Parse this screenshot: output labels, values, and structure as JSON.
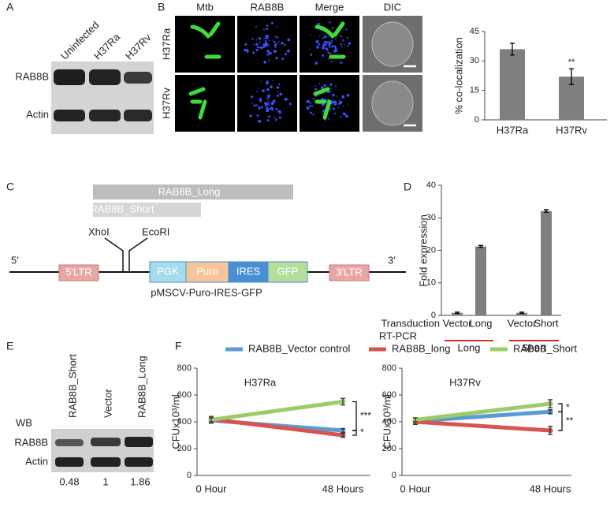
{
  "panel_labels": [
    "A",
    "B",
    "C",
    "D",
    "E",
    "F"
  ],
  "blot_a": {
    "lanes": [
      "Uninfected",
      "H37Ra",
      "H37Rv"
    ],
    "rows": [
      "RAB8B",
      "Actin"
    ]
  },
  "microscopy": {
    "columns": [
      "Mtb",
      "RAB8B",
      "Merge",
      "DIC"
    ],
    "rows": [
      "H37Ra",
      "H37Rv"
    ]
  },
  "construct": {
    "long": "RAB8B_Long",
    "short": "RAB8B_Short",
    "sites": [
      "XhoI",
      "EcoRI"
    ],
    "ends": [
      "5′",
      "3′"
    ],
    "elements": [
      "5'LTR",
      "PGK",
      "Puro",
      "IRES",
      "GFP",
      "3'LTR"
    ],
    "name": "pMSCV-Puro-IRES-GFP"
  },
  "blot_e": {
    "lanes": [
      "RAB8B_Short",
      "Vector",
      "RAB8B_Long"
    ],
    "label": "WB",
    "rows": [
      "RAB8B",
      "Actin"
    ],
    "quantification": [
      0.48,
      1,
      1.86
    ]
  },
  "chart_data": [
    {
      "type": "bar",
      "ylabel": "% co-localization",
      "categories": [
        "H37Ra",
        "H37Rv"
      ],
      "values": [
        36,
        22
      ],
      "errors": [
        3,
        4
      ],
      "annotations": [
        null,
        "**"
      ],
      "color": "#7f7f7f",
      "ylim": [
        0,
        45
      ],
      "yticks": [
        0,
        15,
        30,
        45
      ]
    },
    {
      "type": "bar",
      "ylabel": "Fold expression",
      "categories": [
        "Vector",
        "Long",
        "Vector",
        "Short"
      ],
      "values": [
        0.8,
        21.2,
        0.8,
        32.1
      ],
      "errors": [
        0.2,
        0.3,
        0.2,
        0.4
      ],
      "row_labels": [
        "Transduction",
        "RT-PCR"
      ],
      "group_labels": [
        "Long",
        "Short"
      ],
      "group_color": "#d7312b",
      "color": "#7f7f7f",
      "ylim": [
        0,
        40
      ],
      "yticks": [
        0,
        10,
        20,
        30,
        40
      ]
    },
    {
      "type": "line",
      "title": "H37Ra",
      "ylabel": "CFUx10³/ml",
      "categories": [
        "0 Hour",
        "48 Hours"
      ],
      "series": [
        {
          "name": "RAB8B_Vector control",
          "color": "#5b9bd5",
          "values": [
            410,
            335
          ],
          "errors": [
            20,
            15
          ]
        },
        {
          "name": "RAB8B_long",
          "color": "#d9534f",
          "values": [
            420,
            300
          ],
          "errors": [
            20,
            15
          ]
        },
        {
          "name": "RAB8B_Short",
          "color": "#9ccb6b",
          "values": [
            415,
            550
          ],
          "errors": [
            15,
            25
          ]
        }
      ],
      "annotations": [
        "***",
        "*"
      ],
      "ylim": [
        0,
        800
      ],
      "yticks": [
        0,
        200,
        400,
        600,
        800
      ]
    },
    {
      "type": "line",
      "title": "H37Rv",
      "ylabel": "CFUx10³/ml",
      "categories": [
        "0 Hour",
        "48 Hours"
      ],
      "series": [
        {
          "color": "#5b9bd5",
          "values": [
            405,
            475
          ],
          "errors": [
            20,
            15
          ]
        },
        {
          "color": "#d9534f",
          "values": [
            400,
            335
          ],
          "errors": [
            20,
            30
          ]
        },
        {
          "color": "#9ccb6b",
          "values": [
            415,
            535
          ],
          "errors": [
            15,
            30
          ]
        }
      ],
      "annotations": [
        "*",
        "**"
      ],
      "ylim": [
        0,
        800
      ],
      "yticks": [
        0,
        200,
        400,
        600,
        800
      ]
    }
  ]
}
